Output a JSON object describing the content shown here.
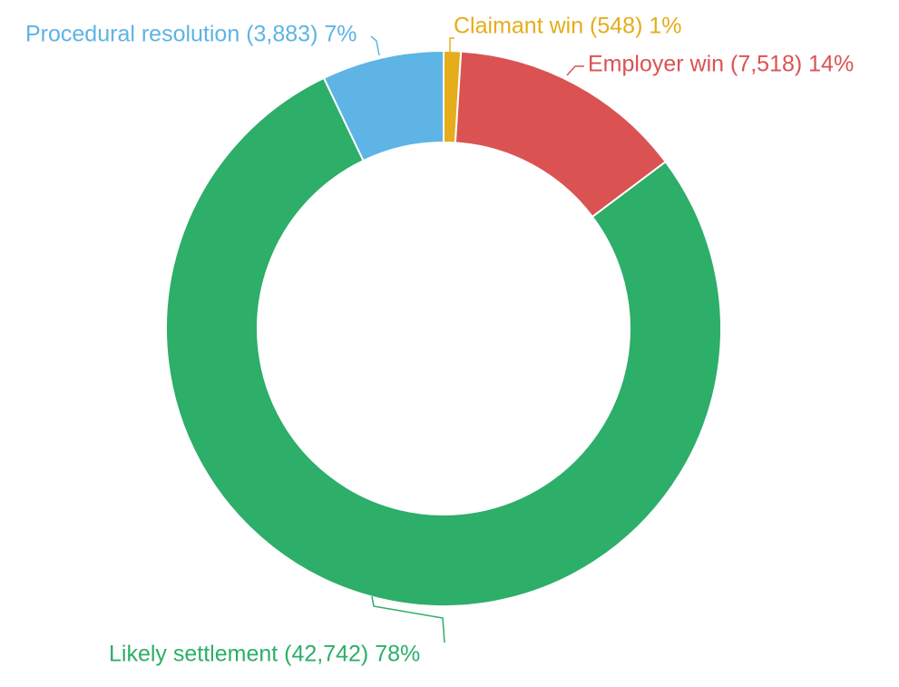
{
  "colors": {
    "background": "#ffffff",
    "slice_stroke": "#ffffff"
  },
  "chart_data": {
    "type": "pie",
    "donut": true,
    "start_angle": "12 o'clock",
    "direction": "clockwise",
    "legend": "none (labels on slices with leader lines)",
    "title": "",
    "slices": [
      {
        "name": "Claimant win",
        "value": 548,
        "percent": 1,
        "label": "Claimant win (548) 1%",
        "color": "#e5ad1b"
      },
      {
        "name": "Employer win",
        "value": 7518,
        "percent": 14,
        "label": "Employer win (7,518) 14%",
        "color": "#db5253"
      },
      {
        "name": "Likely settlement",
        "value": 42742,
        "percent": 78,
        "label": "Likely settlement (42,742) 78%",
        "color": "#2dae69"
      },
      {
        "name": "Procedural resolution",
        "value": 3883,
        "percent": 7,
        "label": "Procedural resolution (3,883) 7%",
        "color": "#5db4e5"
      }
    ]
  }
}
